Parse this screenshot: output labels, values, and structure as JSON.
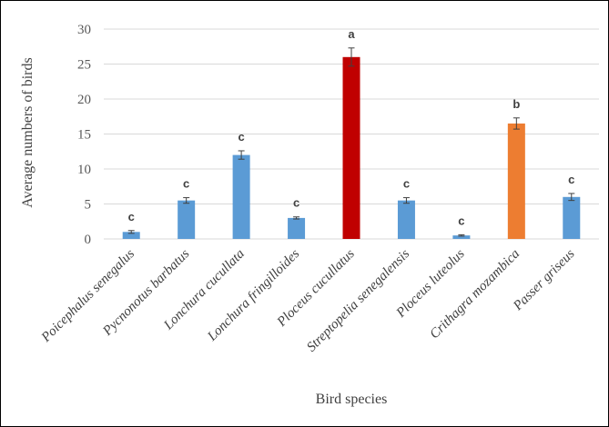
{
  "chart_data": {
    "type": "bar",
    "title": "",
    "xlabel": "Bird  species",
    "ylabel": "Average numbers of birds",
    "ylim": [
      0,
      30
    ],
    "yticks": [
      0,
      5,
      10,
      15,
      20,
      25,
      30
    ],
    "grid": true,
    "legend": "none",
    "categories": [
      "Poicephalus senegalus",
      "Pycnonotus barbatus",
      "Lonchura cucullata",
      "Lonchura fringilloides",
      "Ploceus cucullatus",
      "Streptopelia senegalensis",
      "Ploceus luteolus",
      "Crithagra mozambica",
      "Passer griseus"
    ],
    "values": [
      1.0,
      5.5,
      12.0,
      3.0,
      26.0,
      5.5,
      0.5,
      16.5,
      6.0
    ],
    "errors": [
      0.2,
      0.4,
      0.6,
      0.15,
      1.3,
      0.4,
      0.1,
      0.8,
      0.5
    ],
    "significance_letters": [
      "c",
      "c",
      "c",
      "c",
      "a",
      "c",
      "c",
      "b",
      "c"
    ],
    "bar_colors": [
      "#5b9bd5",
      "#5b9bd5",
      "#5b9bd5",
      "#5b9bd5",
      "#c00000",
      "#5b9bd5",
      "#5b9bd5",
      "#ed7d31",
      "#5b9bd5"
    ]
  }
}
